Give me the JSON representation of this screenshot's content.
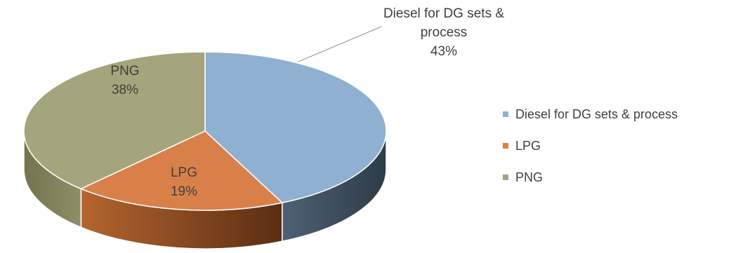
{
  "chart_data": {
    "type": "pie",
    "style": "3d",
    "categories": [
      "Diesel for DG sets & process",
      "LPG",
      "PNG"
    ],
    "values": [
      43,
      19,
      38
    ],
    "colors": [
      "#8fb0d1",
      "#d9804a",
      "#a4a57c"
    ],
    "data_labels": [
      {
        "lines": [
          "Diesel for DG sets &",
          "process",
          "43%"
        ]
      },
      {
        "lines": [
          "LPG",
          "19%"
        ]
      },
      {
        "lines": [
          "PNG",
          "38%"
        ]
      }
    ],
    "legend": {
      "position": "right",
      "items": [
        "Diesel for DG sets & process",
        "LPG",
        "PNG"
      ]
    }
  }
}
